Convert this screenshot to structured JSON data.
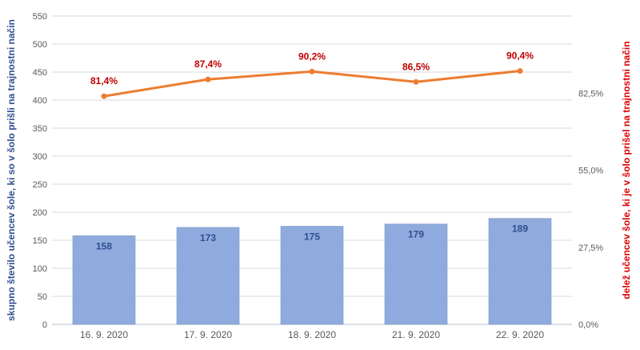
{
  "chart_data": {
    "type": "bar",
    "categories": [
      "16. 9. 2020",
      "17. 9. 2020",
      "18. 9. 2020",
      "21. 9. 2020",
      "22. 9. 2020"
    ],
    "series": [
      {
        "type": "bar",
        "axis": "left",
        "values": [
          158,
          173,
          175,
          179,
          189
        ],
        "labels": [
          "158",
          "173",
          "175",
          "179",
          "189"
        ],
        "color": "#8faadc"
      },
      {
        "type": "line",
        "axis": "right",
        "values": [
          81.4,
          87.4,
          90.2,
          86.5,
          90.4
        ],
        "labels": [
          "81,4%",
          "87,4%",
          "90,2%",
          "86,5%",
          "90,4%"
        ],
        "color": "#ed7d31"
      }
    ],
    "ylabel": "skupno število učencev šole, ki so v šolo prišli na trajnostni način",
    "y2label": "delež učencev šole, ki je v šolo prišel na trajnostni način",
    "ylim": [
      0,
      550
    ],
    "yticks": [
      "0",
      "50",
      "100",
      "150",
      "200",
      "250",
      "300",
      "350",
      "400",
      "450",
      "500",
      "550"
    ],
    "y2lim": [
      0,
      110
    ],
    "y2ticks": [
      {
        "value": 0,
        "label": "0,0%"
      },
      {
        "value": 27.5,
        "label": "27,5%"
      },
      {
        "value": 55,
        "label": "55,0%"
      },
      {
        "value": 82.5,
        "label": "82,5%"
      }
    ],
    "grid": true,
    "colors": {
      "bar": "#8faadc",
      "line": "#ed7d31",
      "bar_label": "#2f4f8f",
      "line_label": "#c00000",
      "left_axis_title": "#2f4f8f",
      "right_axis_title": "#e00000",
      "grid": "#d9d9d9"
    }
  }
}
